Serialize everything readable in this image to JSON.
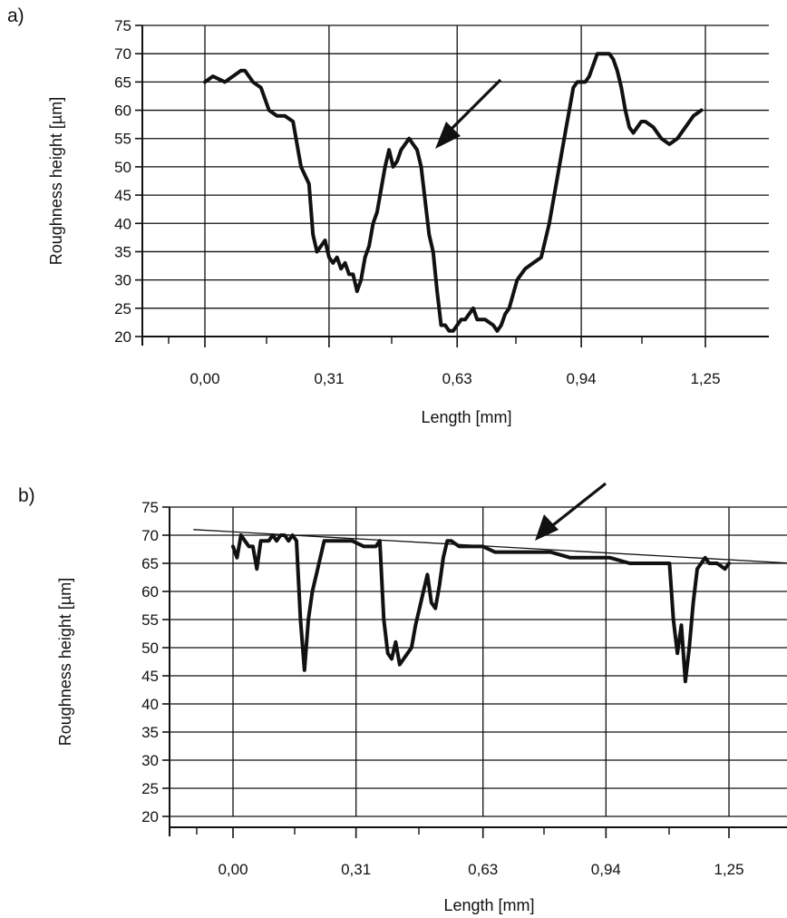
{
  "chart_data": [
    {
      "panel_label": "a)",
      "type": "line",
      "xlabel": "Length [mm]",
      "ylabel": "Roughness height [µm]",
      "x_tick_labels": [
        "0,00",
        "0,31",
        "0,63",
        "0,94",
        "1,25"
      ],
      "x_tick_values": [
        0.0,
        0.31,
        0.63,
        0.94,
        1.25
      ],
      "y_tick_labels": [
        "20",
        "25",
        "30",
        "35",
        "40",
        "45",
        "50",
        "55",
        "60",
        "65",
        "70",
        "75"
      ],
      "xlim": [
        -0.16,
        1.41
      ],
      "ylim": [
        20,
        75
      ],
      "grid": true,
      "series": [
        {
          "x": [
            0.0,
            0.02,
            0.05,
            0.07,
            0.09,
            0.1,
            0.12,
            0.14,
            0.16,
            0.18,
            0.2,
            0.22,
            0.24,
            0.26,
            0.27,
            0.28,
            0.29,
            0.3,
            0.31,
            0.32,
            0.33,
            0.34,
            0.35,
            0.36,
            0.37,
            0.38,
            0.39,
            0.4,
            0.41,
            0.42,
            0.43,
            0.44,
            0.45,
            0.46,
            0.47,
            0.48,
            0.49,
            0.5,
            0.51,
            0.52,
            0.53,
            0.54,
            0.55,
            0.56,
            0.57,
            0.58,
            0.59,
            0.6,
            0.61,
            0.62,
            0.63,
            0.64,
            0.65,
            0.66,
            0.67,
            0.68,
            0.7,
            0.72,
            0.73,
            0.74,
            0.75,
            0.76,
            0.78,
            0.8,
            0.82,
            0.84,
            0.86,
            0.87,
            0.88,
            0.89,
            0.9,
            0.91,
            0.92,
            0.93,
            0.94,
            0.95,
            0.96,
            0.98,
            1.0,
            1.01,
            1.02,
            1.03,
            1.04,
            1.05,
            1.06,
            1.07,
            1.08,
            1.09,
            1.1,
            1.12,
            1.14,
            1.16,
            1.18,
            1.2,
            1.22,
            1.24
          ],
          "y": [
            65,
            66,
            65,
            66,
            67,
            67,
            65,
            64,
            60,
            59,
            59,
            58,
            50,
            47,
            38,
            35,
            36,
            37,
            34,
            33,
            34,
            32,
            33,
            31,
            31,
            28,
            30,
            34,
            36,
            40,
            42,
            46,
            50,
            53,
            50,
            51,
            53,
            54,
            55,
            54,
            53,
            50,
            44,
            38,
            35,
            28,
            22,
            22,
            21,
            21,
            22,
            23,
            23,
            24,
            25,
            23,
            23,
            22,
            21,
            22,
            24,
            25,
            30,
            32,
            33,
            34,
            40,
            44,
            48,
            52,
            56,
            60,
            64,
            65,
            65,
            65,
            66,
            70,
            70,
            70,
            69,
            67,
            64,
            60,
            57,
            56,
            57,
            58,
            58,
            57,
            55,
            54,
            55,
            57,
            59,
            60
          ]
        }
      ],
      "annotation": "arrow pointing at the peak near x = 0.57"
    },
    {
      "panel_label": "b)",
      "type": "line",
      "xlabel": "Length [mm]",
      "ylabel": "Roughness height [µm]",
      "x_tick_labels": [
        "0,00",
        "0,31",
        "0,63",
        "0,94",
        "1,25"
      ],
      "x_tick_values": [
        0.0,
        0.31,
        0.63,
        0.94,
        1.25
      ],
      "y_tick_labels": [
        "20",
        "25",
        "30",
        "35",
        "40",
        "45",
        "50",
        "55",
        "60",
        "65",
        "70",
        "75"
      ],
      "xlim": [
        -0.16,
        1.41
      ],
      "ylim": [
        20,
        75
      ],
      "grid": true,
      "series": [
        {
          "x": [
            0.0,
            0.01,
            0.02,
            0.03,
            0.04,
            0.05,
            0.06,
            0.07,
            0.09,
            0.1,
            0.11,
            0.12,
            0.13,
            0.14,
            0.15,
            0.16,
            0.17,
            0.18,
            0.19,
            0.2,
            0.21,
            0.23,
            0.25,
            0.27,
            0.3,
            0.33,
            0.36,
            0.37,
            0.38,
            0.39,
            0.4,
            0.41,
            0.42,
            0.43,
            0.44,
            0.45,
            0.46,
            0.47,
            0.48,
            0.49,
            0.5,
            0.51,
            0.52,
            0.53,
            0.54,
            0.55,
            0.57,
            0.6,
            0.63,
            0.66,
            0.7,
            0.75,
            0.8,
            0.85,
            0.9,
            0.95,
            1.0,
            1.05,
            1.08,
            1.1,
            1.11,
            1.12,
            1.13,
            1.14,
            1.15,
            1.16,
            1.17,
            1.18,
            1.19,
            1.2,
            1.22,
            1.24,
            1.25
          ],
          "y": [
            68,
            66,
            70,
            69,
            68,
            68,
            64,
            69,
            69,
            70,
            69,
            70,
            70,
            69,
            70,
            69,
            55,
            46,
            55,
            60,
            63,
            69,
            69,
            69,
            69,
            68,
            68,
            69,
            55,
            49,
            48,
            51,
            47,
            48,
            49,
            50,
            54,
            57,
            60,
            63,
            58,
            57,
            61,
            66,
            69,
            69,
            68,
            68,
            68,
            67,
            67,
            67,
            67,
            66,
            66,
            66,
            65,
            65,
            65,
            65,
            55,
            49,
            54,
            44,
            50,
            58,
            64,
            65,
            66,
            65,
            65,
            64,
            65
          ]
        }
      ],
      "reference_line": {
        "x": [
          -0.1,
          1.41
        ],
        "y": [
          71,
          65
        ]
      },
      "annotation": "arrow pointing at the mean line near x = 0.77"
    }
  ]
}
